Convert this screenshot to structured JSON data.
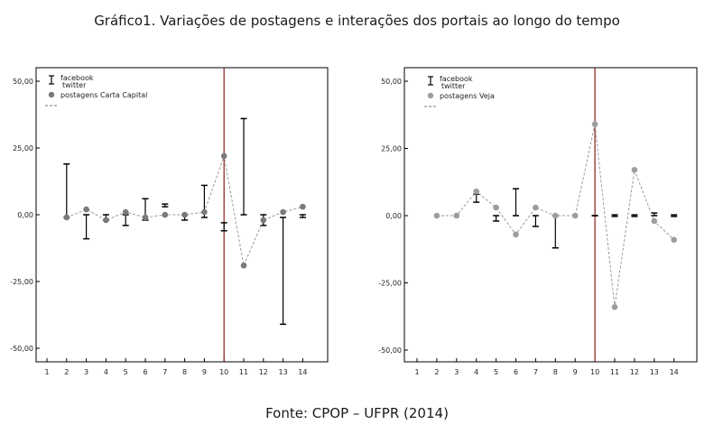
{
  "figure": {
    "title": "Gráfico1. Variações de postagens e interações dos portais ao longo do tempo",
    "source": "Fonte: CPOP – UFPR (2014)"
  },
  "chart_data": [
    {
      "type": "line",
      "x": [
        1,
        2,
        3,
        4,
        5,
        6,
        7,
        8,
        9,
        10,
        11,
        12,
        13,
        14
      ],
      "xticks": [
        "1",
        "2",
        "3",
        "4",
        "5",
        "6",
        "7",
        "8",
        "9",
        "10",
        "11",
        "12",
        "13",
        "14"
      ],
      "ylim": [
        -55,
        55
      ],
      "yticks": [
        "50,00",
        "25,00",
        "0,00",
        "-25,00",
        "-50,00"
      ],
      "vline_x": 10,
      "legend": {
        "errorbar_label1": "facebook",
        "errorbar_label2": "twitter",
        "marker_label": "postagens Carta Capital"
      },
      "series": [
        {
          "name": "postagens Carta Capital",
          "kind": "points_dashed",
          "values": [
            null,
            -1,
            2,
            -2,
            1,
            -1,
            0,
            0,
            1,
            22,
            -19,
            -2,
            1,
            3
          ]
        },
        {
          "name": "facebook / twitter",
          "kind": "errorbar",
          "ranges": [
            null,
            [
              -1,
              19
            ],
            [
              -9,
              0
            ],
            [
              -2,
              0
            ],
            [
              -4,
              0
            ],
            [
              -2,
              6
            ],
            [
              3,
              4
            ],
            [
              -2,
              0
            ],
            [
              -1,
              11
            ],
            [
              -6,
              -3
            ],
            [
              0,
              36
            ],
            [
              -4,
              0
            ],
            [
              -41,
              -1
            ],
            [
              -1,
              0
            ]
          ]
        }
      ]
    },
    {
      "type": "line",
      "x": [
        1,
        2,
        3,
        4,
        5,
        6,
        7,
        8,
        9,
        10,
        11,
        12,
        13,
        14
      ],
      "xticks": [
        "1",
        "2",
        "3",
        "4",
        "5",
        "6",
        "7",
        "8",
        "9",
        "10",
        "11",
        "12",
        "13",
        "14"
      ],
      "ylim": [
        -55,
        55
      ],
      "yticks": [
        "50,00",
        "25,00",
        "0,00",
        "-25,00",
        "-50,00"
      ],
      "vline_x": 10,
      "legend": {
        "errorbar_label1": "facebook",
        "errorbar_label2": "twitter",
        "marker_label": "postagens Veja"
      },
      "series": [
        {
          "name": "postagens Veja",
          "kind": "points_dashed",
          "values": [
            null,
            0,
            0,
            9,
            3,
            -7,
            3,
            0,
            0,
            34,
            -34,
            17,
            -2,
            -9
          ]
        },
        {
          "name": "facebook / twitter",
          "kind": "errorbar",
          "ranges": [
            null,
            null,
            null,
            [
              5,
              8
            ],
            [
              -2,
              0
            ],
            [
              0,
              10
            ],
            [
              -4,
              0
            ],
            [
              -12,
              0
            ],
            null,
            [
              0,
              0
            ],
            [
              -0.3,
              0.3
            ],
            [
              -0.3,
              0.3
            ],
            [
              0,
              1
            ],
            [
              -0.3,
              0.3
            ]
          ]
        }
      ]
    }
  ]
}
